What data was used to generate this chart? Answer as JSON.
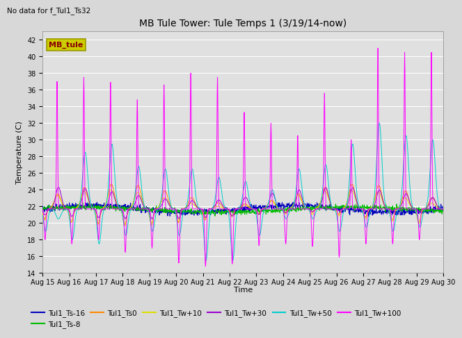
{
  "title": "MB Tule Tower: Tule Temps 1 (3/19/14-now)",
  "subtitle": "No data for f_Tul1_Ts32",
  "xlabel": "Time",
  "ylabel": "Temperature (C)",
  "ylim": [
    14,
    43
  ],
  "yticks": [
    14,
    16,
    18,
    20,
    22,
    24,
    26,
    28,
    30,
    32,
    34,
    36,
    38,
    40,
    42
  ],
  "bg_color": "#e0e0e0",
  "fig_color": "#d8d8d8",
  "legend_label": "MB_tule",
  "legend_box_facecolor": "#cccc00",
  "legend_box_edgecolor": "#999900",
  "legend_text_color": "#880000",
  "series_colors": {
    "Tul1_Ts-16": "#0000bb",
    "Tul1_Ts-8": "#00bb00",
    "Tul1_Ts0": "#ff8800",
    "Tul1_Tw+10": "#dddd00",
    "Tul1_Tw+30": "#9900cc",
    "Tul1_Tw+50": "#00cccc",
    "Tul1_Tw+100": "#ff00ff"
  },
  "n_days": 15,
  "base_temp": 21.7,
  "day_labels": [
    "Aug 15",
    "Aug 16",
    "Aug 17",
    "Aug 18",
    "Aug 19",
    "Aug 20",
    "Aug 21",
    "Aug 22",
    "Aug 23",
    "Aug 24",
    "Aug 25",
    "Aug 26",
    "Aug 27",
    "Aug 28",
    "Aug 29",
    "Aug 30"
  ],
  "magenta_peaks": [
    37.0,
    37.5,
    36.9,
    34.8,
    36.6,
    38.0,
    37.5,
    33.3,
    32.0,
    30.5,
    35.6,
    30.0,
    41.0,
    40.5,
    40.5
  ],
  "magenta_troughs": [
    18.0,
    17.5,
    18.0,
    16.5,
    17.0,
    15.2,
    14.8,
    15.1,
    17.3,
    17.5,
    17.2,
    15.9,
    17.5,
    17.5,
    18.0
  ],
  "cyan_peaks": [
    20.5,
    28.5,
    29.5,
    26.8,
    26.5,
    26.5,
    25.5,
    25.0,
    24.0,
    26.5,
    27.0,
    29.5,
    32.0,
    30.5,
    30.0
  ],
  "cyan_troughs": [
    19.0,
    18.0,
    17.5,
    18.5,
    19.0,
    18.5,
    15.5,
    15.5,
    18.5,
    20.5,
    20.5,
    19.0,
    19.5,
    19.0,
    19.5
  ]
}
